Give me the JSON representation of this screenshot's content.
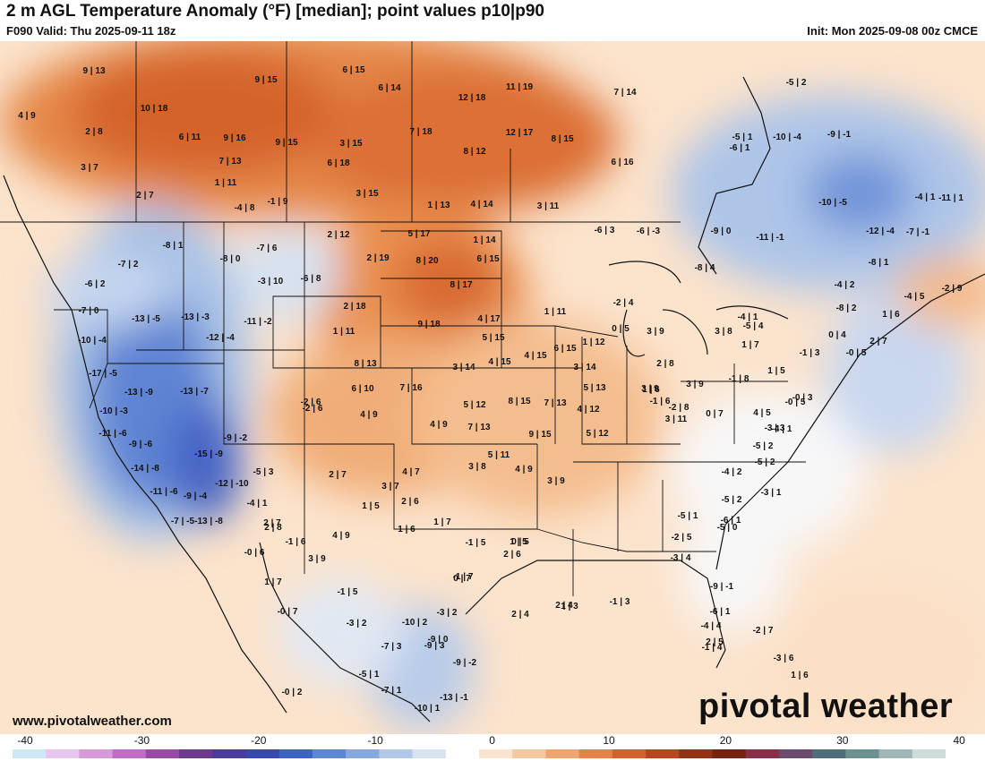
{
  "header": {
    "title": "2 m AGL Temperature Anomaly (°F) [median]; point values p10|p90",
    "valid": "F090 Valid: Thu 2025-09-11 18z",
    "init": "Init: Mon 2025-09-08 00z CMCE"
  },
  "footer": {
    "website": "www.pivotalweather.com",
    "brand": "pivotal weather"
  },
  "colorbar": {
    "ticks": [
      "-40",
      "-30",
      "-20",
      "-10",
      "0",
      "10",
      "20",
      "30",
      "40"
    ],
    "min": -40,
    "max": 40,
    "colors": [
      "#cfe8f5",
      "#e6c6ec",
      "#d79ad9",
      "#c06bc4",
      "#9a4ba6",
      "#6e3a8d",
      "#4a3c9a",
      "#3748b0",
      "#3d63c5",
      "#5d86d3",
      "#86a8de",
      "#b2c8e8",
      "#d8e3f1",
      "#ffffff",
      "#fbe4cf",
      "#f6c8a2",
      "#efa572",
      "#e6814a",
      "#d4612d",
      "#b9461f",
      "#953216",
      "#74230f",
      "#8a2f4a",
      "#6b4a6e",
      "#4f6e7a",
      "#6c9191",
      "#9fb7b7",
      "#cfdcdc"
    ]
  },
  "point_values": [
    "9|13",
    "4|9",
    "10|18",
    "2|8",
    "3|7",
    "6|11",
    "9|16",
    "7|13",
    "2|7",
    "1|11",
    "9|15",
    "9|15",
    "6|15",
    "3|15",
    "6|18",
    "6|14",
    "12|18",
    "11|19",
    "7|18",
    "12|17",
    "8|12",
    "8|15",
    "7|14",
    "6|16",
    "3|15",
    "1|13",
    "4|14",
    "3|11",
    "-1|9",
    "-4|8",
    "-8|1",
    "-7|2",
    "-6|2",
    "-7|0",
    "-10|-4",
    "-13|-5",
    "-13|-3",
    "-12|-4",
    "-11|-2",
    "-7|6",
    "-8|0",
    "-3|10",
    "-6|8",
    "2|12",
    "5|17",
    "1|14",
    "2|19",
    "8|20",
    "6|15",
    "8|17",
    "-17|-5",
    "-13|-9",
    "-13|-7",
    "-10|-3",
    "-11|-6",
    "-9|-6",
    "-14|-8",
    "-15|-9",
    "-12|-10",
    "-9|-4",
    "-11|-6",
    "-7|-5",
    "-13|-8",
    "-9|-2",
    "-2|6",
    "2|18",
    "1|11",
    "8|13",
    "6|10",
    "4|9",
    "7|16",
    "3|14",
    "9|18",
    "4|17",
    "5|15",
    "4|15",
    "4|15",
    "6|15",
    "3|14",
    "5|13",
    "5|12",
    "8|15",
    "7|13",
    "4|12",
    "4|9",
    "7|13",
    "5|11",
    "9|15",
    "5|12",
    "3|8",
    "4|9",
    "3|9",
    "4|7",
    "2|7",
    "3|7",
    "2|6",
    "1|5",
    "1|6",
    "1|7",
    "2|7",
    "-5|3",
    "-4|1",
    "2|8",
    "-1|6",
    "-0|6",
    "3|9",
    "4|9",
    "1|7",
    "2|4",
    "-1|5",
    "-3|2",
    "-3|2",
    "-10|2",
    "-9|0",
    "-7|3",
    "-9|3",
    "-5|1",
    "-9|-2",
    "-7|1",
    "-13|-1",
    "-10|1",
    "-0|7",
    "-2|6",
    "-1|7",
    "-0|2",
    "0|7",
    "2|6",
    "0|5",
    "1|5",
    "-1|5",
    "2|4",
    "1|3",
    "-1|3",
    "1|12",
    "1|11",
    "-2|4",
    "0|5",
    "3|9",
    "1|6",
    "-1|6",
    "3|8",
    "-4|1",
    "-5|4",
    "1|7",
    "1|5",
    "2|8",
    "3|9",
    "3|9",
    "3|11",
    "-2|8",
    "0|7",
    "4|5",
    "-4|1",
    "-3|3",
    "-5|2",
    "-4|2",
    "-5|2",
    "-3|1",
    "-6|1",
    "-5|0",
    "-5|1",
    "-2|5",
    "-3|4",
    "-9|-1",
    "-6|1",
    "-4|4",
    "-1|4",
    "2|5",
    "-2|7",
    "-3|6",
    "1|6",
    "-6|3",
    "-9|0",
    "-11|-1",
    "-6|1",
    "-5|1",
    "-10|-4",
    "-9|-1",
    "-10|-5",
    "-12|-4",
    "-7|-1",
    "-8|1",
    "-4|1",
    "-11|1",
    "-5|2",
    "-4|2",
    "-8|2",
    "-4|5",
    "-2|9",
    "1|6",
    "0|4",
    "2|7",
    "-0|5",
    "-1|3",
    "-0|3",
    "-0|5",
    "-1|8",
    "-8|4",
    "-6|-3",
    "-5|2"
  ]
}
